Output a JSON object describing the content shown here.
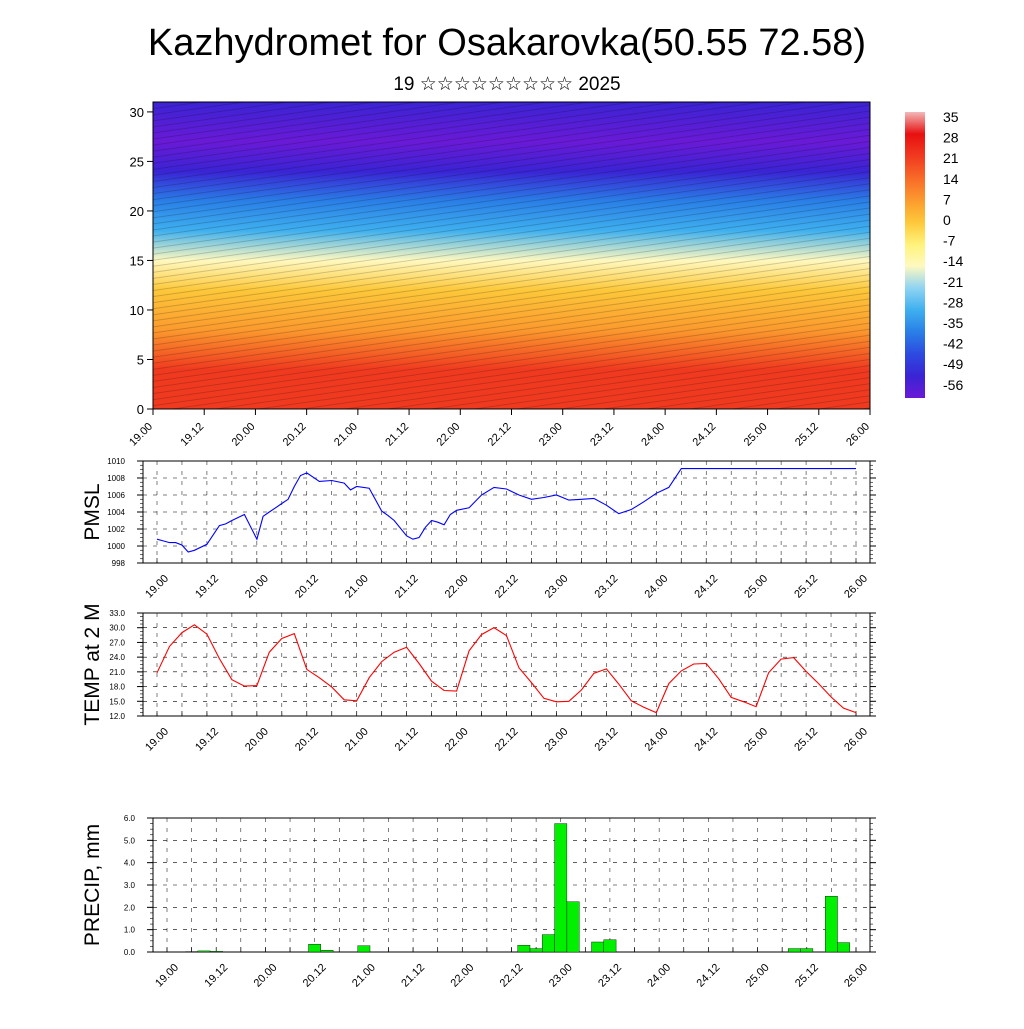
{
  "title": "Kazhydromet for Osakarovka(50.55 72.58)",
  "subtitle": "19 ☆☆☆☆☆☆☆☆☆ 2025",
  "time_labels": [
    "19.00",
    "19.12",
    "20.00",
    "20.12",
    "21.00",
    "21.12",
    "22.00",
    "22.12",
    "23.00",
    "23.12",
    "24.00",
    "24.12",
    "25.00",
    "25.12",
    "26.00"
  ],
  "chart_data": [
    {
      "type": "heatmap",
      "description_key": "cross_section",
      "x_range": [
        "19.00",
        "26.00"
      ],
      "ylim": [
        0,
        31
      ],
      "yticks": [
        0,
        5,
        10,
        15,
        20,
        25,
        30
      ],
      "colorbar": {
        "labels": [
          "35",
          "28",
          "21",
          "14",
          "7",
          "0",
          "-7",
          "-14",
          "-21",
          "-28",
          "-35",
          "-42",
          "-49",
          "-56"
        ],
        "colors": [
          "#f2b8b8",
          "#e81010",
          "#f03a20",
          "#f86a28",
          "#fb9a2e",
          "#fdc83a",
          "#fff27a",
          "#fff9c0",
          "#8fd4f2",
          "#3fb0ef",
          "#2a7fe6",
          "#2c4be0",
          "#3a24d4",
          "#6a1ad6"
        ]
      },
      "profile": [
        {
          "height": 0,
          "temp": 24
        },
        {
          "height": 4,
          "temp": 18
        },
        {
          "height": 8,
          "temp": 7
        },
        {
          "height": 12,
          "temp": -3
        },
        {
          "height": 15,
          "temp": -12
        },
        {
          "height": 18,
          "temp": -28
        },
        {
          "height": 21,
          "temp": -38
        },
        {
          "height": 24,
          "temp": -50
        },
        {
          "height": 27,
          "temp": -55
        },
        {
          "height": 31,
          "temp": -52
        }
      ]
    },
    {
      "type": "line",
      "ylabel": "PMSL",
      "ylim": [
        998,
        1010
      ],
      "yticks": [
        "998",
        "1000",
        "1002",
        "1004",
        "1006",
        "1008",
        "1010"
      ],
      "color": "#0000ff",
      "x": [
        0,
        0.25,
        0.5,
        0.75,
        1,
        1.25,
        1.5,
        2,
        2.5,
        2.75,
        3,
        3.5,
        4,
        4.25,
        4.5,
        4.75,
        5,
        5.25,
        5.5,
        5.75,
        6,
        6.25,
        6.5,
        7,
        7.5,
        7.75,
        8,
        8.5,
        9,
        9.25,
        9.5,
        10,
        10.25,
        10.5,
        10.75,
        11,
        11.25,
        11.5,
        11.75,
        12,
        12.5,
        13,
        13.5,
        14,
        14.5,
        15,
        15.5,
        16,
        16.5,
        17,
        17.5,
        18,
        18.5,
        19,
        19.5,
        20,
        20.5,
        21,
        21.5,
        22,
        22.5,
        23,
        23.5,
        24,
        24.5,
        25,
        25.5,
        26,
        26.5,
        27,
        27.5,
        28
      ],
      "values": [
        1000.8,
        1000.6,
        1000.4,
        1000.4,
        1000.1,
        999.3,
        999.5,
        1000.2,
        1002.4,
        1002.6,
        1003.0,
        1003.7,
        1000.8,
        1003.5,
        1004.0,
        1004.5,
        1005.0,
        1005.5,
        1007.0,
        1008.3,
        1008.6,
        1008.1,
        1007.6,
        1007.7,
        1007.4,
        1006.6,
        1007.0,
        1006.8,
        1004.1,
        1003.6,
        1003.0,
        1001.2,
        1000.8,
        1001.0,
        1002.2,
        1003.0,
        1002.8,
        1002.5,
        1003.7,
        1004.2,
        1004.5,
        1006.0,
        1006.9,
        1006.7,
        1006.0,
        1005.5,
        1005.7,
        1006.0,
        1005.4,
        1005.5,
        1005.6,
        1004.8,
        1003.8,
        1004.3,
        1005.2,
        1006.2,
        1006.9,
        1009.1,
        1009.1,
        1009.1,
        1009.1,
        1009.1,
        1009.1,
        1009.1,
        1009.1,
        1009.1,
        1009.1,
        1009.1,
        1009.1,
        1009.1,
        1009.1,
        1009.1
      ]
    },
    {
      "type": "line",
      "ylabel": "TEMP at 2 M",
      "ylim": [
        12,
        33
      ],
      "yticks": [
        "12.0",
        "15.0",
        "18.0",
        "21.0",
        "24.0",
        "27.0",
        "30.0",
        "33.0"
      ],
      "color": "#ff0000",
      "x": [
        0,
        1,
        2,
        3,
        4,
        5,
        6,
        7,
        8,
        9,
        10,
        11,
        12,
        13,
        14,
        15,
        16,
        17,
        18,
        19,
        20,
        21,
        22,
        23,
        24,
        25,
        26,
        27,
        28,
        29,
        30,
        31,
        32,
        33,
        34,
        35,
        36,
        37,
        38,
        39,
        40,
        41,
        42,
        43,
        44,
        45,
        46,
        47,
        48,
        49,
        50,
        51,
        52,
        53,
        54,
        55,
        56
      ],
      "values": [
        20.8,
        26.2,
        29.0,
        30.6,
        28.7,
        23.7,
        19.4,
        18.1,
        18.2,
        25.0,
        27.8,
        28.8,
        21.5,
        19.8,
        17.9,
        15.3,
        15.1,
        19.8,
        23.1,
        25.0,
        26.0,
        22.7,
        19.1,
        17.2,
        17.1,
        25.3,
        28.6,
        30.0,
        28.4,
        21.8,
        18.8,
        15.6,
        14.9,
        15.0,
        17.3,
        20.7,
        21.6,
        18.5,
        15.1,
        13.8,
        12.7,
        18.6,
        21.2,
        22.6,
        22.7,
        19.6,
        15.8,
        14.9,
        13.9,
        20.8,
        23.6,
        23.9,
        21.1,
        18.6,
        15.9,
        13.6,
        12.7
      ]
    },
    {
      "type": "bar",
      "ylabel": "PRECIP, mm",
      "ylim": [
        0,
        6
      ],
      "yticks": [
        "0.0",
        "1.0",
        "2.0",
        "3.0",
        "4.0",
        "5.0",
        "6.0"
      ],
      "color": "#00f000",
      "x": [
        0,
        1,
        2,
        3,
        4,
        5,
        6,
        7,
        8,
        9,
        10,
        11,
        12,
        13,
        14,
        15,
        16,
        17,
        18,
        19,
        20,
        21,
        22,
        23,
        24,
        25,
        26,
        27,
        28,
        29,
        30,
        31,
        32,
        33,
        34,
        35,
        36,
        37,
        38,
        39,
        40,
        41,
        42,
        43,
        44,
        45,
        46,
        47,
        48,
        49,
        50,
        51,
        52,
        53,
        54,
        55,
        56
      ],
      "values": [
        0,
        0,
        0.02,
        0.05,
        0.03,
        0,
        0,
        0,
        0,
        0,
        0,
        0,
        0.35,
        0.08,
        0,
        0,
        0.28,
        0,
        0,
        0,
        0,
        0,
        0,
        0,
        0,
        0,
        0,
        0,
        0,
        0.3,
        0.15,
        0.78,
        5.75,
        2.25,
        0,
        0.45,
        0.55,
        0,
        0,
        0,
        0,
        0,
        0,
        0,
        0,
        0,
        0,
        0,
        0,
        0,
        0,
        0.15,
        0.15,
        0,
        2.5,
        0.42,
        0
      ]
    }
  ]
}
